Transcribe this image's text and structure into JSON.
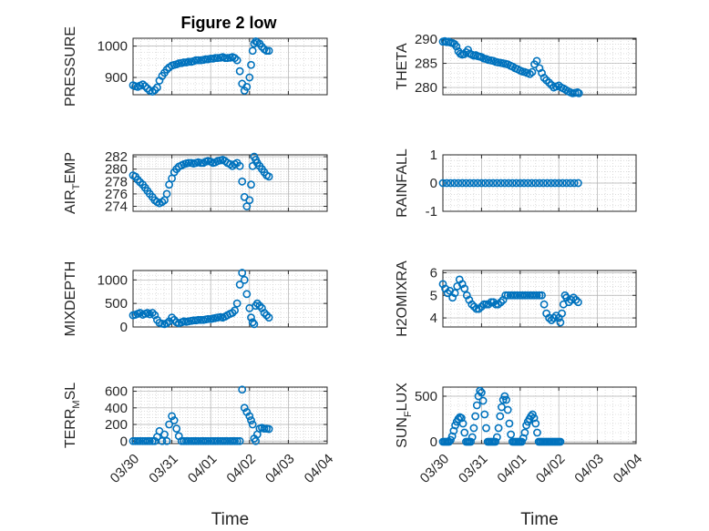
{
  "figure": {
    "title": "Figure 2 low"
  },
  "colors": {
    "marker": "#0072BD",
    "axis": "#262626",
    "grid": "#c8c8c8"
  },
  "x_tick_labels": [
    "03/30",
    "03/31",
    "04/01",
    "04/02",
    "04/03",
    "04/04"
  ],
  "chart_data": [
    {
      "type": "scatter",
      "marker": "circle",
      "ylabel": "PRESSURE",
      "title": "Figure 2 low",
      "xlim": [
        "03/30",
        "04/04"
      ],
      "ylim": [
        845,
        1025
      ],
      "yticks": [
        900,
        1000
      ],
      "grid": true,
      "x": [
        0.0,
        0.06,
        0.12,
        0.18,
        0.25,
        0.31,
        0.37,
        0.43,
        0.5,
        0.56,
        0.62,
        0.68,
        0.75,
        0.81,
        0.87,
        0.93,
        1.0,
        1.06,
        1.12,
        1.18,
        1.25,
        1.31,
        1.37,
        1.43,
        1.5,
        1.56,
        1.62,
        1.68,
        1.75,
        1.81,
        1.87,
        1.93,
        2.0,
        2.06,
        2.12,
        2.18,
        2.25,
        2.31,
        2.37,
        2.43,
        2.5,
        2.56,
        2.62,
        2.68,
        2.75,
        2.81,
        2.87,
        2.93,
        3.0,
        3.04,
        3.08,
        3.12,
        3.16,
        3.2,
        3.26,
        3.32,
        3.38,
        3.44,
        3.5
      ],
      "y": [
        875,
        872,
        870,
        874,
        878,
        872,
        865,
        858,
        855,
        860,
        868,
        890,
        905,
        915,
        925,
        932,
        938,
        940,
        942,
        945,
        946,
        948,
        948,
        950,
        950,
        952,
        955,
        955,
        955,
        956,
        958,
        958,
        960,
        960,
        962,
        962,
        963,
        965,
        962,
        962,
        963,
        965,
        962,
        955,
        920,
        880,
        858,
        870,
        900,
        940,
        985,
        1008,
        1015,
        1012,
        1008,
        998,
        990,
        985,
        985
      ]
    },
    {
      "type": "scatter",
      "marker": "circle",
      "ylabel": "THETA",
      "xlim": [
        "03/30",
        "04/04"
      ],
      "ylim": [
        278.5,
        290.2
      ],
      "yticks": [
        280,
        285,
        290
      ],
      "grid": true,
      "x": [
        0.0,
        0.05,
        0.1,
        0.15,
        0.2,
        0.25,
        0.3,
        0.35,
        0.4,
        0.45,
        0.5,
        0.55,
        0.6,
        0.65,
        0.7,
        0.75,
        0.8,
        0.85,
        0.9,
        0.95,
        1.0,
        1.06,
        1.12,
        1.18,
        1.25,
        1.31,
        1.37,
        1.43,
        1.5,
        1.56,
        1.62,
        1.68,
        1.75,
        1.81,
        1.87,
        1.93,
        2.0,
        2.06,
        2.12,
        2.18,
        2.25,
        2.31,
        2.37,
        2.43,
        2.5,
        2.56,
        2.62,
        2.68,
        2.75,
        2.81,
        2.87,
        2.93,
        3.0,
        3.06,
        3.12,
        3.18,
        3.24,
        3.3,
        3.36,
        3.42,
        3.48,
        3.52
      ],
      "y": [
        289.5,
        289.6,
        289.4,
        289.5,
        289.3,
        289.2,
        289.0,
        288.5,
        287.5,
        287.0,
        286.8,
        286.9,
        287.3,
        287.8,
        287.0,
        286.8,
        286.6,
        286.7,
        286.5,
        286.4,
        286.3,
        286.0,
        285.9,
        285.7,
        285.6,
        285.5,
        285.3,
        285.2,
        285.1,
        285.0,
        284.9,
        284.8,
        284.5,
        284.3,
        284.0,
        283.8,
        283.5,
        283.3,
        283.2,
        283.0,
        282.8,
        283.2,
        284.8,
        285.5,
        284.0,
        283.0,
        282.0,
        281.5,
        281.0,
        280.5,
        280.0,
        280.2,
        280.4,
        280.0,
        279.8,
        279.5,
        279.2,
        279.0,
        278.8,
        278.9,
        279.0,
        278.8
      ]
    },
    {
      "type": "scatter",
      "marker": "circle",
      "ylabel": "AIR_TEMP",
      "xlim": [
        "03/30",
        "04/04"
      ],
      "ylim": [
        273.2,
        282.3
      ],
      "yticks": [
        274,
        276,
        278,
        280,
        282
      ],
      "grid": true,
      "x": [
        0.0,
        0.06,
        0.12,
        0.18,
        0.25,
        0.31,
        0.37,
        0.43,
        0.5,
        0.56,
        0.62,
        0.68,
        0.75,
        0.81,
        0.87,
        0.93,
        1.0,
        1.06,
        1.12,
        1.18,
        1.25,
        1.31,
        1.37,
        1.43,
        1.5,
        1.56,
        1.62,
        1.68,
        1.75,
        1.81,
        1.87,
        1.93,
        2.0,
        2.06,
        2.12,
        2.18,
        2.25,
        2.31,
        2.37,
        2.43,
        2.5,
        2.56,
        2.62,
        2.68,
        2.75,
        2.81,
        2.87,
        2.93,
        3.0,
        3.04,
        3.08,
        3.12,
        3.16,
        3.2,
        3.26,
        3.32,
        3.38,
        3.44,
        3.5
      ],
      "y": [
        279.0,
        278.8,
        278.3,
        277.9,
        277.5,
        277.0,
        276.5,
        276.0,
        275.5,
        275.0,
        274.7,
        274.5,
        274.7,
        275.0,
        276.0,
        277.5,
        278.5,
        279.5,
        280.0,
        280.4,
        280.6,
        280.8,
        280.9,
        281.0,
        281.0,
        280.9,
        281.0,
        281.1,
        281.0,
        281.0,
        281.2,
        281.3,
        281.2,
        281.0,
        281.1,
        281.3,
        281.4,
        281.5,
        281.3,
        281.0,
        280.8,
        280.5,
        280.8,
        281.0,
        280.5,
        278.0,
        275.5,
        274.0,
        275.0,
        277.5,
        280.5,
        282.0,
        281.5,
        281.0,
        280.5,
        280.0,
        279.5,
        279.0,
        278.8
      ]
    },
    {
      "type": "scatter",
      "marker": "circle",
      "ylabel": "RAINFALL",
      "xlim": [
        "03/30",
        "04/04"
      ],
      "ylim": [
        -1,
        1
      ],
      "yticks": [
        -1,
        0,
        1
      ],
      "grid": true,
      "x": [
        0.0,
        0.1,
        0.2,
        0.3,
        0.4,
        0.5,
        0.6,
        0.7,
        0.8,
        0.9,
        1.0,
        1.1,
        1.2,
        1.3,
        1.4,
        1.5,
        1.6,
        1.7,
        1.8,
        1.9,
        2.0,
        2.1,
        2.2,
        2.3,
        2.4,
        2.5,
        2.6,
        2.7,
        2.8,
        2.9,
        3.0,
        3.1,
        3.2,
        3.3,
        3.4,
        3.5
      ],
      "y": [
        0,
        0,
        0,
        0,
        0,
        0,
        0,
        0,
        0,
        0,
        0,
        0,
        0,
        0,
        0,
        0,
        0,
        0,
        0,
        0,
        0,
        0,
        0,
        0,
        0,
        0,
        0,
        0,
        0,
        0,
        0,
        0,
        0,
        0,
        0,
        0
      ]
    },
    {
      "type": "scatter",
      "marker": "circle",
      "ylabel": "MIXDEPTH",
      "xlim": [
        "03/30",
        "04/04"
      ],
      "ylim": [
        0,
        1200
      ],
      "yticks": [
        0,
        500,
        1000
      ],
      "grid": true,
      "x": [
        0.0,
        0.06,
        0.12,
        0.18,
        0.25,
        0.31,
        0.37,
        0.43,
        0.5,
        0.56,
        0.62,
        0.68,
        0.75,
        0.81,
        0.87,
        0.93,
        1.0,
        1.06,
        1.12,
        1.18,
        1.25,
        1.31,
        1.37,
        1.43,
        1.5,
        1.56,
        1.62,
        1.68,
        1.75,
        1.81,
        1.87,
        1.93,
        2.0,
        2.06,
        2.12,
        2.18,
        2.25,
        2.31,
        2.37,
        2.43,
        2.5,
        2.56,
        2.62,
        2.68,
        2.75,
        2.81,
        2.87,
        2.93,
        3.0,
        3.04,
        3.08,
        3.12,
        3.16,
        3.2,
        3.26,
        3.32,
        3.38,
        3.44,
        3.5
      ],
      "y": [
        250,
        260,
        280,
        300,
        260,
        280,
        300,
        270,
        300,
        250,
        150,
        90,
        70,
        60,
        80,
        120,
        200,
        150,
        100,
        80,
        100,
        120,
        110,
        120,
        130,
        140,
        140,
        150,
        150,
        150,
        160,
        170,
        170,
        180,
        190,
        200,
        210,
        200,
        220,
        250,
        280,
        300,
        350,
        500,
        900,
        1150,
        1000,
        700,
        400,
        200,
        100,
        60,
        450,
        500,
        450,
        400,
        300,
        250,
        200
      ]
    },
    {
      "type": "scatter",
      "marker": "circle",
      "ylabel": "H2OMIXRA",
      "xlim": [
        "03/30",
        "04/04"
      ],
      "ylim": [
        3.6,
        6.1
      ],
      "yticks": [
        4,
        5,
        6
      ],
      "grid": true,
      "x": [
        0.0,
        0.06,
        0.12,
        0.18,
        0.25,
        0.31,
        0.37,
        0.43,
        0.5,
        0.56,
        0.62,
        0.68,
        0.75,
        0.81,
        0.87,
        0.93,
        1.0,
        1.06,
        1.12,
        1.18,
        1.25,
        1.31,
        1.37,
        1.43,
        1.5,
        1.56,
        1.62,
        1.68,
        1.75,
        1.81,
        1.87,
        1.93,
        2.0,
        2.06,
        2.12,
        2.18,
        2.25,
        2.31,
        2.37,
        2.43,
        2.5,
        2.56,
        2.62,
        2.68,
        2.75,
        2.81,
        2.87,
        2.93,
        3.0,
        3.04,
        3.08,
        3.12,
        3.16,
        3.2,
        3.26,
        3.32,
        3.38,
        3.44,
        3.5
      ],
      "y": [
        5.5,
        5.3,
        5.1,
        5.2,
        4.9,
        5.1,
        5.4,
        5.7,
        5.5,
        5.3,
        5.0,
        4.8,
        4.6,
        4.5,
        4.4,
        4.4,
        4.5,
        4.6,
        4.6,
        4.6,
        4.7,
        4.7,
        4.6,
        4.6,
        4.7,
        4.8,
        5.0,
        5.0,
        5.0,
        5.0,
        5.0,
        5.0,
        5.0,
        5.0,
        5.0,
        5.0,
        5.0,
        5.0,
        5.0,
        5.0,
        5.0,
        5.0,
        4.6,
        4.2,
        4.0,
        3.9,
        4.0,
        4.1,
        4.0,
        3.8,
        4.2,
        4.6,
        5.0,
        4.9,
        4.7,
        4.8,
        4.9,
        4.8,
        4.7
      ]
    },
    {
      "type": "scatter",
      "marker": "circle",
      "ylabel": "TERR_MSL",
      "xlim": [
        "03/30",
        "04/04"
      ],
      "ylim": [
        -30,
        650
      ],
      "yticks": [
        0,
        200,
        400,
        600
      ],
      "grid": true,
      "x": [
        0.0,
        0.06,
        0.12,
        0.18,
        0.25,
        0.31,
        0.37,
        0.43,
        0.5,
        0.56,
        0.62,
        0.68,
        0.75,
        0.81,
        0.87,
        0.93,
        1.0,
        1.06,
        1.12,
        1.18,
        1.25,
        1.31,
        1.37,
        1.43,
        1.5,
        1.56,
        1.62,
        1.68,
        1.75,
        1.81,
        1.87,
        1.93,
        2.0,
        2.06,
        2.12,
        2.18,
        2.25,
        2.31,
        2.37,
        2.43,
        2.5,
        2.56,
        2.62,
        2.68,
        2.75,
        2.81,
        2.87,
        2.93,
        3.0,
        3.04,
        3.08,
        3.12,
        3.16,
        3.2,
        3.26,
        3.32,
        3.38,
        3.44,
        3.5
      ],
      "y": [
        0,
        0,
        0,
        0,
        0,
        0,
        0,
        0,
        0,
        0,
        50,
        120,
        0,
        80,
        0,
        200,
        300,
        250,
        150,
        60,
        0,
        0,
        0,
        0,
        0,
        0,
        0,
        0,
        0,
        0,
        0,
        0,
        0,
        0,
        0,
        0,
        0,
        0,
        0,
        0,
        0,
        0,
        0,
        0,
        0,
        620,
        400,
        350,
        300,
        250,
        200,
        30,
        0,
        80,
        150,
        160,
        150,
        150,
        145
      ]
    },
    {
      "type": "scatter",
      "marker": "circle",
      "ylabel": "SUN_FLUX",
      "xlim": [
        "03/30",
        "04/04"
      ],
      "ylim": [
        -20,
        600
      ],
      "yticks": [
        0,
        500
      ],
      "grid": true,
      "x": [
        0.0,
        0.04,
        0.08,
        0.12,
        0.16,
        0.2,
        0.24,
        0.28,
        0.32,
        0.36,
        0.4,
        0.44,
        0.48,
        0.52,
        0.56,
        0.6,
        0.64,
        0.68,
        0.72,
        0.76,
        0.8,
        0.84,
        0.88,
        0.92,
        0.96,
        1.0,
        1.04,
        1.08,
        1.12,
        1.16,
        1.2,
        1.24,
        1.28,
        1.32,
        1.36,
        1.4,
        1.44,
        1.48,
        1.52,
        1.56,
        1.6,
        1.64,
        1.68,
        1.72,
        1.76,
        1.8,
        1.84,
        1.88,
        1.92,
        1.96,
        2.0,
        2.04,
        2.08,
        2.12,
        2.16,
        2.2,
        2.24,
        2.28,
        2.32,
        2.36,
        2.4,
        2.44,
        2.48,
        2.52,
        2.56,
        2.6,
        2.64,
        2.68,
        2.72,
        2.76,
        2.8,
        2.84,
        2.88,
        2.92,
        2.96,
        3.0,
        3.04
      ],
      "y": [
        0,
        0,
        0,
        0,
        0,
        20,
        60,
        120,
        180,
        220,
        250,
        270,
        260,
        200,
        100,
        0,
        0,
        0,
        0,
        50,
        150,
        280,
        400,
        500,
        560,
        540,
        450,
        300,
        150,
        0,
        0,
        0,
        0,
        0,
        0,
        50,
        150,
        280,
        380,
        460,
        500,
        460,
        350,
        200,
        80,
        0,
        0,
        0,
        0,
        0,
        0,
        0,
        40,
        100,
        180,
        220,
        250,
        280,
        300,
        260,
        200,
        100,
        0,
        0,
        0,
        0,
        0,
        0,
        0,
        0,
        0,
        0,
        0,
        0,
        0,
        0,
        0
      ]
    }
  ]
}
